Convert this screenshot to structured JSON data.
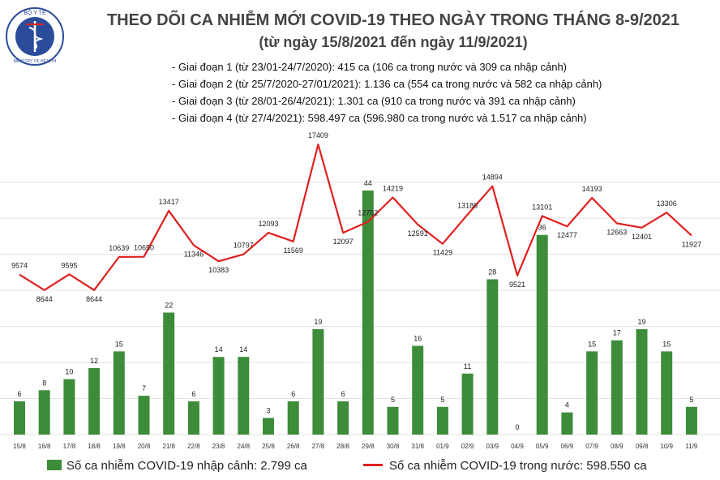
{
  "header": {
    "title": "THEO DÕI CA NHIỄM MỚI COVID-19 THEO NGÀY TRONG THÁNG 8-9/2021",
    "subtitle": "(từ ngày 15/8/2021 đến ngày 11/9/2021)",
    "logo_text": "BỘ Y TẾ",
    "logo_subtext": "MINISTRY OF HEALTH"
  },
  "phases": [
    "- Giai đoạn 1 (từ 23/01-24/7/2020): 415 ca (106 ca trong nước và 309 ca nhập cảnh)",
    "- Giai đoạn 2 (từ 25/7/2020-27/01/2021): 1.136 ca (554 ca trong nước và 582 ca nhập cảnh)",
    "- Giai đoạn 3 (từ 28/01-26/4/2021): 1.301 ca (910 ca trong nước và 391 ca nhập cảnh)",
    "- Giai đoạn 4 (từ 27/4/2021): 598.497 ca (596.980 ca trong nước và 1.517 ca nhập cảnh)"
  ],
  "colors": {
    "bar": "#3d8c3a",
    "line": "#e0201f",
    "title": "#444444",
    "logo": "#2b4c9a"
  },
  "chart_data": {
    "type": "bar+line",
    "categories": [
      "15/8",
      "16/8",
      "17/8",
      "18/8",
      "19/8",
      "20/8",
      "21/8",
      "22/8",
      "23/8",
      "24/8",
      "25/8",
      "26/8",
      "27/8",
      "28/8",
      "29/8",
      "30/8",
      "31/8",
      "01/9",
      "02/9",
      "03/9",
      "04/9",
      "05/9",
      "06/9",
      "07/9",
      "08/9",
      "09/8",
      "10/9",
      "11/9"
    ],
    "series": [
      {
        "name": "Số ca nhiễm COVID-19 nhập cảnh: 2.799 ca",
        "type": "bar",
        "values": [
          6,
          8,
          10,
          12,
          15,
          7,
          22,
          6,
          14,
          14,
          3,
          6,
          19,
          6,
          44,
          5,
          16,
          5,
          11,
          28,
          0,
          36,
          4,
          15,
          17,
          19,
          15,
          5
        ]
      },
      {
        "name": "Số ca nhiễm COVID-19 trong nước: 598.550 ca",
        "type": "line",
        "values": [
          9574,
          8644,
          9595,
          8644,
          10639,
          10650,
          13417,
          11346,
          10383,
          10797,
          12093,
          11569,
          17409,
          12097,
          12752,
          14219,
          12591,
          11429,
          13186,
          14894,
          9521,
          13101,
          12477,
          14193,
          12663,
          12401,
          13306,
          11927
        ]
      }
    ],
    "bar_ylim": [
      0,
      50
    ],
    "line_ylim": [
      0,
      19000
    ],
    "grid": true,
    "legend_position": "bottom"
  }
}
